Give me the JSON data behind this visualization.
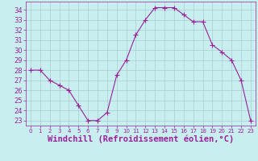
{
  "x": [
    0,
    1,
    2,
    3,
    4,
    5,
    6,
    7,
    8,
    9,
    10,
    11,
    12,
    13,
    14,
    15,
    16,
    17,
    18,
    19,
    20,
    21,
    22,
    23
  ],
  "y": [
    28,
    28,
    27,
    26.5,
    26,
    24.5,
    23,
    23,
    23.8,
    27.5,
    29,
    31.5,
    33,
    34.2,
    34.2,
    34.2,
    33.5,
    32.8,
    32.8,
    30.5,
    29.8,
    29,
    27,
    23
  ],
  "line_color": "#992299",
  "marker": "+",
  "marker_size": 4,
  "bg_color": "#c8eef0",
  "grid_color": "#aacccc",
  "xlabel": "Windchill (Refroidissement éolien,°C)",
  "xlabel_color": "#992299",
  "xlabel_fontsize": 7.5,
  "tick_color": "#992299",
  "tick_fontsize": 6,
  "ylim": [
    22.5,
    34.8
  ],
  "xlim": [
    -0.5,
    23.5
  ],
  "yticks": [
    23,
    24,
    25,
    26,
    27,
    28,
    29,
    30,
    31,
    32,
    33,
    34
  ],
  "xticks": [
    0,
    1,
    2,
    3,
    4,
    5,
    6,
    7,
    8,
    9,
    10,
    11,
    12,
    13,
    14,
    15,
    16,
    17,
    18,
    19,
    20,
    21,
    22,
    23
  ]
}
